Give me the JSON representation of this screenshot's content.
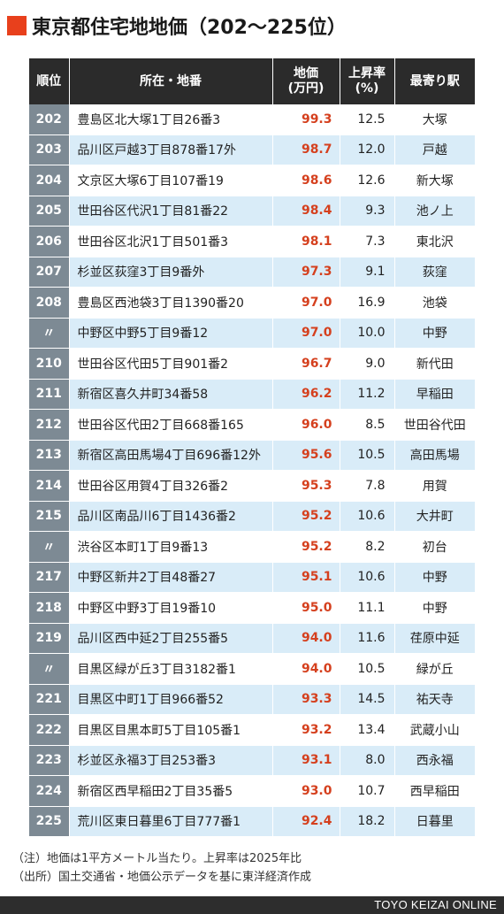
{
  "title": "東京都住宅地地価（202〜225位）",
  "headers": {
    "rank": "順位",
    "address": "所在・地番",
    "price_line1": "地価",
    "price_line2": "(万円)",
    "rate_line1": "上昇率",
    "rate_line2": "(%)",
    "station": "最寄り駅"
  },
  "colors": {
    "accent": "#e8401c",
    "price": "#d5401e",
    "rank_bg": "#7d8a94",
    "stripe": "#d9ecf8",
    "header_bg": "#2b2b2b"
  },
  "rows": [
    {
      "rank": "202",
      "address": "豊島区北大塚1丁目26番3",
      "price": "99.3",
      "rate": "12.5",
      "station": "大塚"
    },
    {
      "rank": "203",
      "address": "品川区戸越3丁目878番17外",
      "price": "98.7",
      "rate": "12.0",
      "station": "戸越"
    },
    {
      "rank": "204",
      "address": "文京区大塚6丁目107番19",
      "price": "98.6",
      "rate": "12.6",
      "station": "新大塚"
    },
    {
      "rank": "205",
      "address": "世田谷区代沢1丁目81番22",
      "price": "98.4",
      "rate": "9.3",
      "station": "池ノ上"
    },
    {
      "rank": "206",
      "address": "世田谷区北沢1丁目501番3",
      "price": "98.1",
      "rate": "7.3",
      "station": "東北沢"
    },
    {
      "rank": "207",
      "address": "杉並区荻窪3丁目9番外",
      "price": "97.3",
      "rate": "9.1",
      "station": "荻窪"
    },
    {
      "rank": "208",
      "address": "豊島区西池袋3丁目1390番20",
      "price": "97.0",
      "rate": "16.9",
      "station": "池袋"
    },
    {
      "rank": "〃",
      "address": "中野区中野5丁目9番12",
      "price": "97.0",
      "rate": "10.0",
      "station": "中野"
    },
    {
      "rank": "210",
      "address": "世田谷区代田5丁目901番2",
      "price": "96.7",
      "rate": "9.0",
      "station": "新代田"
    },
    {
      "rank": "211",
      "address": "新宿区喜久井町34番58",
      "price": "96.2",
      "rate": "11.2",
      "station": "早稲田"
    },
    {
      "rank": "212",
      "address": "世田谷区代田2丁目668番165",
      "price": "96.0",
      "rate": "8.5",
      "station": "世田谷代田"
    },
    {
      "rank": "213",
      "address": "新宿区高田馬場4丁目696番12外",
      "price": "95.6",
      "rate": "10.5",
      "station": "高田馬場"
    },
    {
      "rank": "214",
      "address": "世田谷区用賀4丁目326番2",
      "price": "95.3",
      "rate": "7.8",
      "station": "用賀"
    },
    {
      "rank": "215",
      "address": "品川区南品川6丁目1436番2",
      "price": "95.2",
      "rate": "10.6",
      "station": "大井町"
    },
    {
      "rank": "〃",
      "address": "渋谷区本町1丁目9番13",
      "price": "95.2",
      "rate": "8.2",
      "station": "初台"
    },
    {
      "rank": "217",
      "address": "中野区新井2丁目48番27",
      "price": "95.1",
      "rate": "10.6",
      "station": "中野"
    },
    {
      "rank": "218",
      "address": "中野区中野3丁目19番10",
      "price": "95.0",
      "rate": "11.1",
      "station": "中野"
    },
    {
      "rank": "219",
      "address": "品川区西中延2丁目255番5",
      "price": "94.0",
      "rate": "11.6",
      "station": "荏原中延"
    },
    {
      "rank": "〃",
      "address": "目黒区緑が丘3丁目3182番1",
      "price": "94.0",
      "rate": "10.5",
      "station": "緑が丘"
    },
    {
      "rank": "221",
      "address": "目黒区中町1丁目966番52",
      "price": "93.3",
      "rate": "14.5",
      "station": "祐天寺"
    },
    {
      "rank": "222",
      "address": "目黒区目黒本町5丁目105番1",
      "price": "93.2",
      "rate": "13.4",
      "station": "武蔵小山"
    },
    {
      "rank": "223",
      "address": "杉並区永福3丁目253番3",
      "price": "93.1",
      "rate": "8.0",
      "station": "西永福"
    },
    {
      "rank": "224",
      "address": "新宿区西早稲田2丁目35番5",
      "price": "93.0",
      "rate": "10.7",
      "station": "西早稲田"
    },
    {
      "rank": "225",
      "address": "荒川区東日暮里6丁目777番1",
      "price": "92.4",
      "rate": "18.2",
      "station": "日暮里"
    }
  ],
  "notes": {
    "note": "（注）地価は1平方メートル当たり。上昇率は2025年比",
    "source": "（出所）国土交通省・地価公示データを基に東洋経済作成"
  },
  "footer": {
    "brand": "TOYO KEIZAI ONLINE"
  }
}
